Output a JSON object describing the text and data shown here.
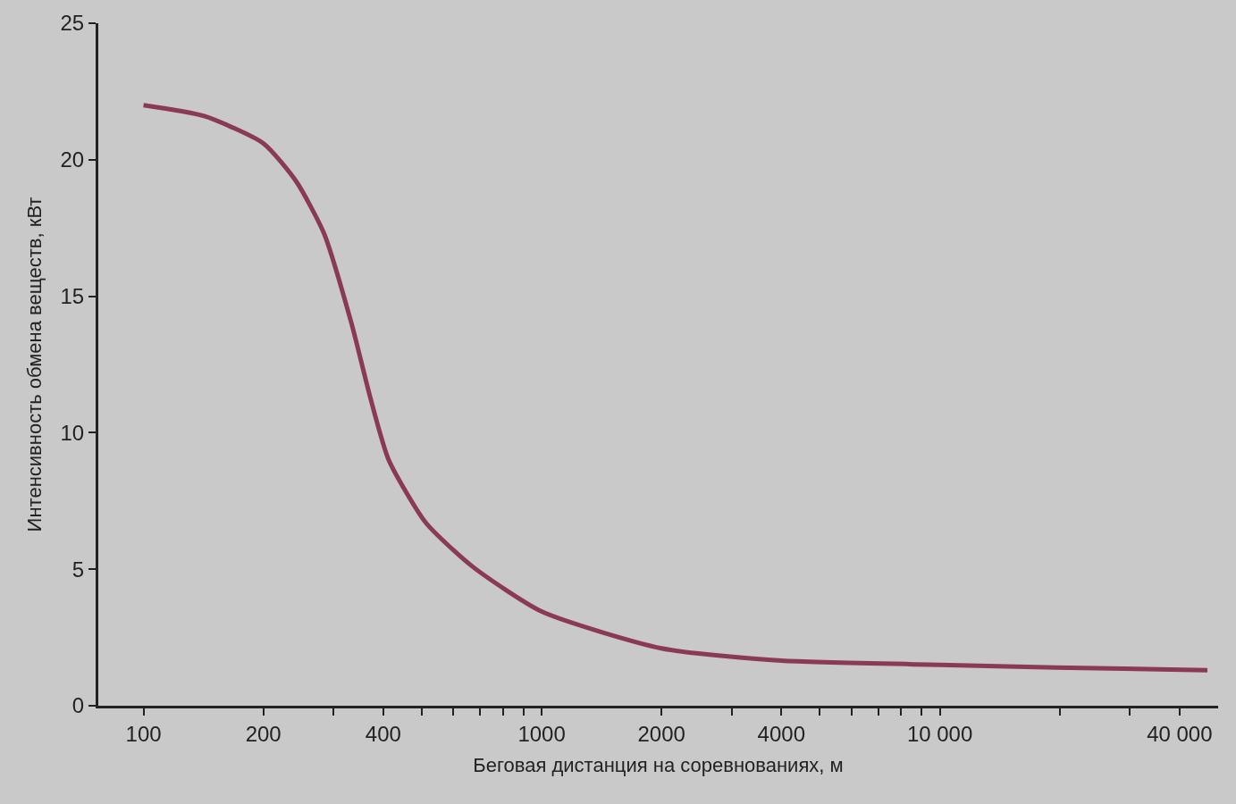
{
  "chart_data": {
    "type": "line",
    "xlabel": "Беговая дистанция на соревнованиях, м",
    "ylabel": "Интенсивность обмена веществ, кВт",
    "x": [
      100,
      142,
      200,
      242,
      284,
      333,
      371,
      413,
      512,
      670,
      1000,
      2000,
      4000,
      10000,
      19500,
      47000
    ],
    "series": [
      {
        "color": "#8b3a55",
        "values": [
          22.0,
          21.6,
          20.6,
          19.2,
          17.3,
          14.0,
          11.3,
          9.0,
          6.7,
          5.1,
          3.45,
          2.1,
          1.65,
          1.5,
          1.4,
          1.3
        ]
      }
    ],
    "log": "x",
    "xlim": [
      77,
      50000
    ],
    "ylim": [
      0,
      25
    ],
    "xticks": [
      100,
      200,
      {
        "value": 300,
        "label": null
      },
      400,
      {
        "value": 500,
        "label": null
      },
      {
        "value": 600,
        "label": null
      },
      {
        "value": 700,
        "label": null
      },
      {
        "value": 800,
        "label": null
      },
      {
        "value": 900,
        "label": null
      },
      1000,
      2000,
      {
        "value": 3000,
        "label": null
      },
      4000,
      {
        "value": 5000,
        "label": null
      },
      {
        "value": 6000,
        "label": null
      },
      {
        "value": 7000,
        "label": null
      },
      {
        "value": 8000,
        "label": null
      },
      {
        "value": 9000,
        "label": null
      },
      {
        "value": 10000,
        "label": "10 000"
      },
      {
        "value": 20000,
        "label": null
      },
      {
        "value": 30000,
        "label": null
      },
      {
        "value": 40000,
        "label": "40 000"
      }
    ],
    "yticks": [
      0,
      5,
      10,
      15,
      20,
      25
    ],
    "grid": false,
    "marker": "none",
    "line_style": "solid"
  }
}
